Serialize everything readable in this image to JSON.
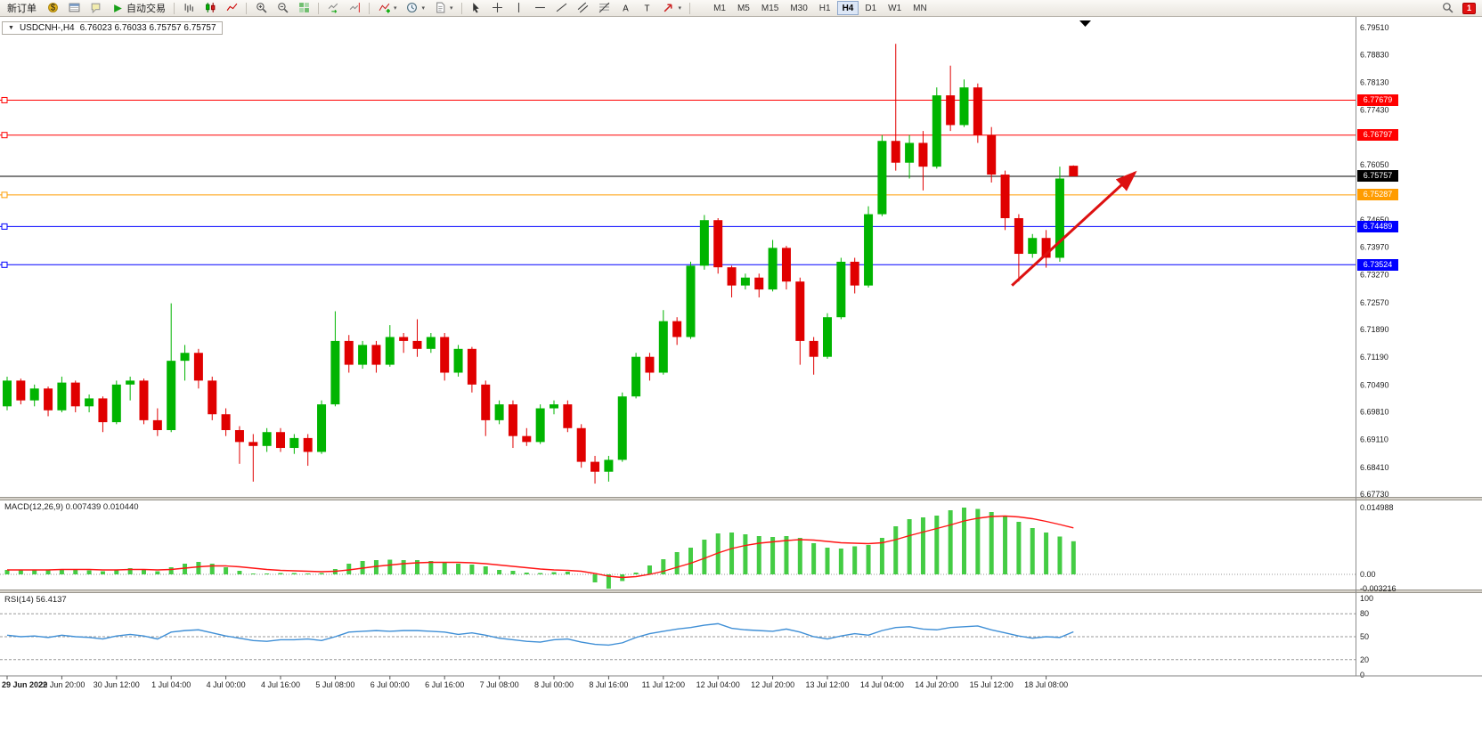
{
  "toolbar": {
    "new_order_label": "新订单",
    "auto_trading_label": "自动交易",
    "left_icons": [
      "market-watch-icon",
      "data-window-icon",
      "navigator-icon"
    ],
    "chart_type_icons": [
      "bar-chart-icon",
      "candlestick-chart-icon",
      "line-chart-icon"
    ],
    "zoom_icons": [
      "zoom-in-icon",
      "zoom-out-icon",
      "tile-windows-icon"
    ],
    "scroll_icons": [
      "auto-scroll-icon",
      "chart-shift-icon"
    ],
    "insert_icons": [
      "indicators-icon",
      "periods-icon",
      "templates-icon"
    ],
    "draw_icons": [
      "cursor-icon",
      "crosshair-icon",
      "vertical-line-icon",
      "horizontal-line-icon",
      "trendline-icon",
      "equidistant-channel-icon",
      "fibonacci-icon",
      "text-icon",
      "text-label-icon",
      "arrow-tools-icon"
    ],
    "timeframes": [
      "M1",
      "M5",
      "M15",
      "M30",
      "H1",
      "H4",
      "D1",
      "W1",
      "MN"
    ],
    "active_timeframe": "H4",
    "right_icons": [
      "search-icon"
    ],
    "notification_count": "1"
  },
  "chart": {
    "symbol_period": "USDCNH-,H4",
    "ohlc_text": "6.76023 6.76033 6.75757 6.75757"
  },
  "chart_data": {
    "type": "candlestick",
    "symbol": "USDCNH-",
    "timeframe": "H4",
    "last_bar_ohlc": [
      6.76023,
      6.76033,
      6.75757,
      6.75757
    ],
    "y_range": [
      6.6773,
      6.7951
    ],
    "colors": {
      "bull": "#00b400",
      "bear": "#e00000",
      "macd_histogram": "#44cc44",
      "macd_signal": "#ff1414",
      "rsi_line": "#3f8fd6",
      "arrow": "#dd1111"
    },
    "price_axis_ticks": [
      "6.79510",
      "6.78830",
      "6.78130",
      "6.77430",
      "6.76730",
      "6.76050",
      "6.75350",
      "6.74650",
      "6.73970",
      "6.73270",
      "6.72570",
      "6.71890",
      "6.71190",
      "6.70490",
      "6.69810",
      "6.69110",
      "6.68410",
      "6.67730"
    ],
    "horizontal_lines": [
      {
        "price": 6.77679,
        "label": "6.77679",
        "color": "#ff0000",
        "role": "resistance-line"
      },
      {
        "price": 6.76797,
        "label": "6.76797",
        "color": "#ff0000",
        "role": "resistance-line"
      },
      {
        "price": 6.75757,
        "label": "6.75757",
        "color": "#000000",
        "role": "bid-price-line"
      },
      {
        "price": 6.75287,
        "label": "6.75287",
        "color": "#ff9c00",
        "role": "support-line"
      },
      {
        "price": 6.74489,
        "label": "6.74489",
        "color": "#0000ff",
        "role": "support-line"
      },
      {
        "price": 6.73524,
        "label": "6.73524",
        "color": "#0000ff",
        "role": "support-line"
      }
    ],
    "time_labels": [
      "29 Jun 2022",
      "29 Jun 20:00",
      "30 Jun 12:00",
      "1 Jul 04:00",
      "4 Jul 00:00",
      "4 Jul 16:00",
      "5 Jul 08:00",
      "6 Jul 00:00",
      "6 Jul 16:00",
      "7 Jul 08:00",
      "8 Jul 00:00",
      "8 Jul 16:00",
      "11 Jul 12:00",
      "12 Jul 04:00",
      "12 Jul 20:00",
      "13 Jul 12:00",
      "14 Jul 04:00",
      "14 Jul 20:00",
      "15 Jul 12:00",
      "18 Jul 08:00"
    ],
    "bars_per_time_label": 4,
    "candles": [
      [
        6.6995,
        6.707,
        6.6985,
        6.706
      ],
      [
        6.706,
        6.7065,
        6.7,
        6.701
      ],
      [
        6.701,
        6.705,
        6.6995,
        6.704
      ],
      [
        6.704,
        6.7045,
        6.697,
        6.6985
      ],
      [
        6.6985,
        6.707,
        6.698,
        6.7055
      ],
      [
        6.7055,
        6.706,
        6.698,
        6.6995
      ],
      [
        6.6995,
        6.7025,
        6.698,
        6.7015
      ],
      [
        6.7015,
        6.702,
        6.693,
        6.6955
      ],
      [
        6.6955,
        6.706,
        6.695,
        6.705
      ],
      [
        6.705,
        6.707,
        6.701,
        6.706
      ],
      [
        6.706,
        6.7065,
        6.695,
        6.696
      ],
      [
        6.696,
        6.699,
        6.692,
        6.6935
      ],
      [
        6.6935,
        6.7255,
        6.693,
        6.711
      ],
      [
        6.711,
        6.715,
        6.706,
        6.713
      ],
      [
        6.713,
        6.714,
        6.704,
        6.706
      ],
      [
        6.706,
        6.707,
        6.696,
        6.6975
      ],
      [
        6.6975,
        6.699,
        6.692,
        6.6935
      ],
      [
        6.6935,
        6.6945,
        6.685,
        6.6905
      ],
      [
        6.6905,
        6.6925,
        6.6805,
        6.6895
      ],
      [
        6.6895,
        6.694,
        6.688,
        6.693
      ],
      [
        6.693,
        6.694,
        6.688,
        6.689
      ],
      [
        6.689,
        6.6925,
        6.6875,
        6.6915
      ],
      [
        6.6915,
        6.6925,
        6.6845,
        6.688
      ],
      [
        6.688,
        6.701,
        6.6875,
        6.7
      ],
      [
        6.7,
        6.7235,
        6.6995,
        6.716
      ],
      [
        6.716,
        6.7175,
        6.708,
        6.71
      ],
      [
        6.71,
        6.716,
        6.709,
        6.715
      ],
      [
        6.715,
        6.716,
        6.708,
        6.71
      ],
      [
        6.71,
        6.72,
        6.7095,
        6.717
      ],
      [
        6.717,
        6.718,
        6.713,
        6.716
      ],
      [
        6.716,
        6.7215,
        6.712,
        6.714
      ],
      [
        6.714,
        6.718,
        6.713,
        6.717
      ],
      [
        6.717,
        6.718,
        6.706,
        6.708
      ],
      [
        6.708,
        6.715,
        6.707,
        6.714
      ],
      [
        6.714,
        6.7145,
        6.703,
        6.705
      ],
      [
        6.705,
        6.706,
        6.692,
        6.696
      ],
      [
        6.696,
        6.701,
        6.695,
        6.7
      ],
      [
        6.7,
        6.701,
        6.689,
        6.692
      ],
      [
        6.692,
        6.694,
        6.6895,
        6.6905
      ],
      [
        6.6905,
        6.7,
        6.69,
        6.699
      ],
      [
        6.699,
        6.701,
        6.6975,
        6.7
      ],
      [
        6.7,
        6.701,
        6.693,
        6.694
      ],
      [
        6.694,
        6.695,
        6.684,
        6.6855
      ],
      [
        6.6855,
        6.687,
        6.68,
        6.683
      ],
      [
        6.683,
        6.687,
        6.6805,
        6.686
      ],
      [
        6.686,
        6.703,
        6.6855,
        6.702
      ],
      [
        6.702,
        6.713,
        6.7015,
        6.712
      ],
      [
        6.712,
        6.713,
        6.706,
        6.708
      ],
      [
        6.708,
        6.7238,
        6.7075,
        6.721
      ],
      [
        6.721,
        6.722,
        6.715,
        6.717
      ],
      [
        6.717,
        6.736,
        6.7165,
        6.735
      ],
      [
        6.735,
        6.7478,
        6.734,
        6.7465
      ],
      [
        6.7465,
        6.747,
        6.733,
        6.7346
      ],
      [
        6.7346,
        6.735,
        6.727,
        6.73
      ],
      [
        6.73,
        6.733,
        6.729,
        6.732
      ],
      [
        6.732,
        6.733,
        6.727,
        6.729
      ],
      [
        6.729,
        6.7415,
        6.7285,
        6.7395
      ],
      [
        6.7395,
        6.74,
        6.729,
        6.731
      ],
      [
        6.731,
        6.732,
        6.71,
        6.716
      ],
      [
        6.716,
        6.717,
        6.7075,
        6.712
      ],
      [
        6.712,
        6.723,
        6.7115,
        6.722
      ],
      [
        6.722,
        6.737,
        6.7215,
        6.736
      ],
      [
        6.736,
        6.737,
        6.728,
        6.73
      ],
      [
        6.73,
        6.75,
        6.7295,
        6.748
      ],
      [
        6.748,
        6.768,
        6.7475,
        6.7665
      ],
      [
        6.7665,
        6.791,
        6.759,
        6.761
      ],
      [
        6.761,
        6.768,
        6.757,
        6.766
      ],
      [
        6.766,
        6.769,
        6.754,
        6.76
      ],
      [
        6.76,
        6.78,
        6.7595,
        6.778
      ],
      [
        6.778,
        6.7855,
        6.769,
        6.7705
      ],
      [
        6.7705,
        6.782,
        6.77,
        6.78
      ],
      [
        6.78,
        6.781,
        6.766,
        6.768
      ],
      [
        6.768,
        6.77,
        6.756,
        6.758
      ],
      [
        6.758,
        6.759,
        6.744,
        6.747
      ],
      [
        6.747,
        6.748,
        6.731,
        6.738
      ],
      [
        6.738,
        6.743,
        6.737,
        6.742
      ],
      [
        6.742,
        6.744,
        6.7345,
        6.737
      ],
      [
        6.737,
        6.76,
        6.736,
        6.757
      ],
      [
        6.76023,
        6.76033,
        6.75757,
        6.75757
      ]
    ],
    "arrow": {
      "type": "trend-arrow",
      "from": {
        "bar": 73.5,
        "price": 6.73
      },
      "to": {
        "bar": 82.5,
        "price": 6.7585
      }
    },
    "indicators": {
      "macd": {
        "label": "MACD(12,26,9)  0.007439 0.010440",
        "params": [
          12,
          26,
          9
        ],
        "value": 0.007439,
        "signal_value": 0.01044,
        "axis_ticks": [
          "0.014988",
          "0.00",
          "-0.003216"
        ],
        "axis_values": [
          0.014988,
          0,
          -0.003216
        ],
        "histogram": [
          0.001,
          0.0009,
          0.0011,
          0.001,
          0.0012,
          0.0011,
          0.0009,
          0.0007,
          0.0011,
          0.0014,
          0.0011,
          0.0007,
          0.0016,
          0.0024,
          0.0028,
          0.0024,
          0.0016,
          0.0008,
          0.0002,
          0.0002,
          0.0003,
          0.0003,
          0.0002,
          0.0003,
          0.0012,
          0.0024,
          0.003,
          0.0032,
          0.0033,
          0.0032,
          0.0032,
          0.003,
          0.0028,
          0.0024,
          0.0022,
          0.0018,
          0.001,
          0.0008,
          0.0004,
          0.0003,
          0.0005,
          0.0006,
          0.0,
          -0.0018,
          -0.0032,
          -0.0015,
          0.0004,
          0.002,
          0.0034,
          0.005,
          0.006,
          0.0078,
          0.0092,
          0.0094,
          0.009,
          0.0086,
          0.0084,
          0.0086,
          0.0082,
          0.007,
          0.006,
          0.0058,
          0.0063,
          0.0066,
          0.0082,
          0.0108,
          0.0124,
          0.0128,
          0.0132,
          0.0144,
          0.015,
          0.0147,
          0.014,
          0.013,
          0.0118,
          0.0104,
          0.0094,
          0.0085,
          0.00744
        ],
        "signal": [
          0.001,
          0.001,
          0.001,
          0.001,
          0.0011,
          0.0011,
          0.0011,
          0.001,
          0.001,
          0.0011,
          0.0011,
          0.001,
          0.0011,
          0.0014,
          0.0017,
          0.0019,
          0.0019,
          0.0017,
          0.0014,
          0.0011,
          0.0009,
          0.0008,
          0.0007,
          0.0006,
          0.0007,
          0.001,
          0.0014,
          0.0018,
          0.0021,
          0.0024,
          0.0026,
          0.0027,
          0.0027,
          0.0027,
          0.0026,
          0.0024,
          0.0021,
          0.0018,
          0.0015,
          0.0012,
          0.001,
          0.0009,
          0.0007,
          0.0002,
          -0.0004,
          -0.0007,
          -0.0005,
          0.0,
          0.0007,
          0.0016,
          0.0025,
          0.0036,
          0.0048,
          0.0058,
          0.0065,
          0.007,
          0.0073,
          0.0076,
          0.0078,
          0.0077,
          0.0074,
          0.0071,
          0.007,
          0.0069,
          0.0071,
          0.0078,
          0.0087,
          0.0095,
          0.0103,
          0.0111,
          0.012,
          0.0126,
          0.013,
          0.0131,
          0.0129,
          0.0125,
          0.0119,
          0.0112,
          0.01044
        ]
      },
      "rsi": {
        "label": "RSI(14) 56.4137",
        "period": 14,
        "value": 56.4137,
        "axis_ticks": [
          "100",
          "80",
          "50",
          "20",
          "0"
        ],
        "levels": [
          80,
          50,
          20
        ],
        "values": [
          52,
          50,
          51,
          49,
          52,
          50,
          49,
          47,
          51,
          53,
          51,
          47,
          56,
          58,
          59,
          55,
          51,
          48,
          45,
          44,
          46,
          46,
          47,
          45,
          50,
          56,
          57,
          58,
          57,
          58,
          58,
          57,
          56,
          53,
          55,
          52,
          48,
          46,
          44,
          43,
          46,
          47,
          43,
          40,
          39,
          42,
          49,
          54,
          57,
          60,
          62,
          65,
          67,
          61,
          59,
          58,
          57,
          60,
          56,
          50,
          47,
          51,
          54,
          52,
          58,
          62,
          63,
          60,
          59,
          62,
          63,
          64,
          59,
          55,
          51,
          48,
          50,
          49,
          56.41
        ]
      }
    }
  }
}
